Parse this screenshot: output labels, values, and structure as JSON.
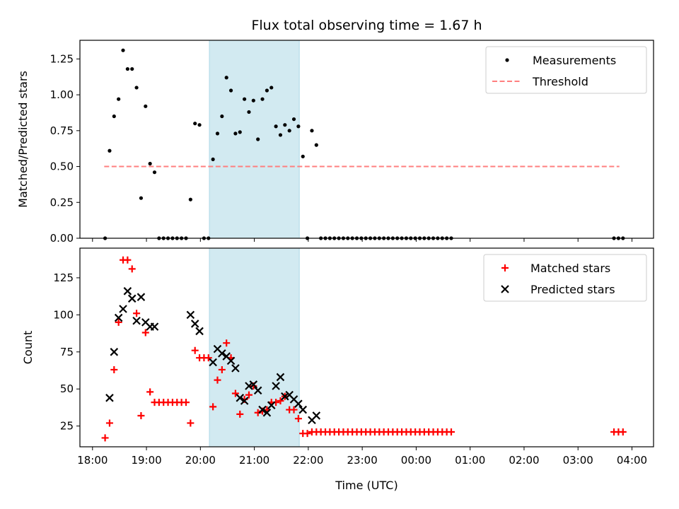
{
  "chart_data": [
    {
      "type": "scatter",
      "title": "Flux total observing time = 1.67 h",
      "xlabel": "",
      "ylabel": "Matched/Predicted stars",
      "ylim": [
        0,
        1.38
      ],
      "xlim": [
        "17:46",
        "04:24"
      ],
      "yticks": [
        "0.00",
        "0.25",
        "0.50",
        "0.75",
        "1.00",
        "1.25"
      ],
      "legend": {
        "position": "upper right",
        "entries": [
          "Measurements",
          "Threshold"
        ]
      },
      "shaded_region": {
        "from": "20:10",
        "to": "21:50",
        "color": "#add8e6"
      },
      "threshold": {
        "name": "Threshold",
        "value": 0.5,
        "from": "18:13",
        "to": "03:46",
        "color": "#ff7f7f"
      },
      "series": [
        {
          "name": "Measurements",
          "color": "#000000",
          "points": [
            [
              "18:14",
              0.0
            ],
            [
              "18:19",
              0.61
            ],
            [
              "18:24",
              0.85
            ],
            [
              "18:29",
              0.97
            ],
            [
              "18:34",
              1.31
            ],
            [
              "18:39",
              1.18
            ],
            [
              "18:44",
              1.18
            ],
            [
              "18:49",
              1.05
            ],
            [
              "18:54",
              0.28
            ],
            [
              "18:59",
              0.92
            ],
            [
              "19:04",
              0.52
            ],
            [
              "19:09",
              0.46
            ],
            [
              "19:14",
              0.0
            ],
            [
              "19:19",
              0.0
            ],
            [
              "19:24",
              0.0
            ],
            [
              "19:29",
              0.0
            ],
            [
              "19:34",
              0.0
            ],
            [
              "19:39",
              0.0
            ],
            [
              "19:44",
              0.0
            ],
            [
              "19:49",
              0.27
            ],
            [
              "19:54",
              0.8
            ],
            [
              "19:59",
              0.79
            ],
            [
              "20:04",
              0.0
            ],
            [
              "20:09",
              0.0
            ],
            [
              "20:14",
              0.55
            ],
            [
              "20:19",
              0.73
            ],
            [
              "20:24",
              0.85
            ],
            [
              "20:29",
              1.12
            ],
            [
              "20:34",
              1.03
            ],
            [
              "20:39",
              0.73
            ],
            [
              "20:44",
              0.74
            ],
            [
              "20:49",
              0.97
            ],
            [
              "20:54",
              0.88
            ],
            [
              "20:59",
              0.96
            ],
            [
              "21:04",
              0.69
            ],
            [
              "21:09",
              0.97
            ],
            [
              "21:14",
              1.03
            ],
            [
              "21:19",
              1.05
            ],
            [
              "21:24",
              0.78
            ],
            [
              "21:29",
              0.72
            ],
            [
              "21:34",
              0.79
            ],
            [
              "21:39",
              0.75
            ],
            [
              "21:44",
              0.83
            ],
            [
              "21:49",
              0.78
            ],
            [
              "21:54",
              0.57
            ],
            [
              "21:59",
              0.0
            ],
            [
              "22:04",
              0.75
            ],
            [
              "22:09",
              0.65
            ],
            [
              "22:14",
              0.0
            ],
            [
              "22:19",
              0.0
            ],
            [
              "22:24",
              0.0
            ],
            [
              "22:29",
              0.0
            ],
            [
              "22:34",
              0.0
            ],
            [
              "22:39",
              0.0
            ],
            [
              "22:44",
              0.0
            ],
            [
              "22:49",
              0.0
            ],
            [
              "22:54",
              0.0
            ],
            [
              "22:59",
              0.0
            ],
            [
              "23:04",
              0.0
            ],
            [
              "23:09",
              0.0
            ],
            [
              "23:14",
              0.0
            ],
            [
              "23:19",
              0.0
            ],
            [
              "23:24",
              0.0
            ],
            [
              "23:29",
              0.0
            ],
            [
              "23:34",
              0.0
            ],
            [
              "23:39",
              0.0
            ],
            [
              "23:44",
              0.0
            ],
            [
              "23:49",
              0.0
            ],
            [
              "23:54",
              0.0
            ],
            [
              "23:59",
              0.0
            ],
            [
              "00:04",
              0.0
            ],
            [
              "00:09",
              0.0
            ],
            [
              "00:14",
              0.0
            ],
            [
              "00:19",
              0.0
            ],
            [
              "00:24",
              0.0
            ],
            [
              "00:29",
              0.0
            ],
            [
              "00:34",
              0.0
            ],
            [
              "00:39",
              0.0
            ],
            [
              "03:40",
              0.0
            ],
            [
              "03:45",
              0.0
            ],
            [
              "03:50",
              0.0
            ]
          ]
        }
      ]
    },
    {
      "type": "scatter",
      "title": "",
      "xlabel": "Time (UTC)",
      "ylabel": "Count",
      "ylim": [
        11,
        145
      ],
      "xlim": [
        "17:46",
        "04:24"
      ],
      "xticks": [
        "18:00",
        "19:00",
        "20:00",
        "21:00",
        "22:00",
        "23:00",
        "00:00",
        "01:00",
        "02:00",
        "03:00",
        "04:00"
      ],
      "yticks": [
        "25",
        "50",
        "75",
        "100",
        "125"
      ],
      "legend": {
        "position": "upper right",
        "entries": [
          "Matched stars",
          "Predicted stars"
        ]
      },
      "shaded_region": {
        "from": "20:10",
        "to": "21:50",
        "color": "#add8e6"
      },
      "series": [
        {
          "name": "Matched stars",
          "marker": "+",
          "color": "#ff0000",
          "points": [
            [
              "18:14",
              17
            ],
            [
              "18:19",
              27
            ],
            [
              "18:24",
              63
            ],
            [
              "18:29",
              95
            ],
            [
              "18:34",
              137
            ],
            [
              "18:39",
              137
            ],
            [
              "18:44",
              131
            ],
            [
              "18:49",
              101
            ],
            [
              "18:54",
              32
            ],
            [
              "18:59",
              88
            ],
            [
              "19:04",
              48
            ],
            [
              "19:09",
              41
            ],
            [
              "19:14",
              41
            ],
            [
              "19:19",
              41
            ],
            [
              "19:24",
              41
            ],
            [
              "19:29",
              41
            ],
            [
              "19:34",
              41
            ],
            [
              "19:39",
              41
            ],
            [
              "19:44",
              41
            ],
            [
              "19:49",
              27
            ],
            [
              "19:54",
              76
            ],
            [
              "19:59",
              71
            ],
            [
              "20:04",
              71
            ],
            [
              "20:09",
              71
            ],
            [
              "20:14",
              38
            ],
            [
              "20:19",
              56
            ],
            [
              "20:24",
              63
            ],
            [
              "20:29",
              81
            ],
            [
              "20:34",
              71
            ],
            [
              "20:39",
              47
            ],
            [
              "20:44",
              33
            ],
            [
              "20:49",
              43
            ],
            [
              "20:54",
              46
            ],
            [
              "20:59",
              52
            ],
            [
              "21:04",
              34
            ],
            [
              "21:09",
              35
            ],
            [
              "21:14",
              36
            ],
            [
              "21:19",
              41
            ],
            [
              "21:24",
              41
            ],
            [
              "21:29",
              42
            ],
            [
              "21:34",
              45
            ],
            [
              "21:39",
              36
            ],
            [
              "21:44",
              36
            ],
            [
              "21:49",
              30
            ],
            [
              "21:54",
              20
            ],
            [
              "21:59",
              20
            ],
            [
              "22:04",
              21
            ],
            [
              "22:09",
              21
            ],
            [
              "22:14",
              21
            ],
            [
              "22:19",
              21
            ],
            [
              "22:24",
              21
            ],
            [
              "22:29",
              21
            ],
            [
              "22:34",
              21
            ],
            [
              "22:39",
              21
            ],
            [
              "22:44",
              21
            ],
            [
              "22:49",
              21
            ],
            [
              "22:54",
              21
            ],
            [
              "22:59",
              21
            ],
            [
              "23:04",
              21
            ],
            [
              "23:09",
              21
            ],
            [
              "23:14",
              21
            ],
            [
              "23:19",
              21
            ],
            [
              "23:24",
              21
            ],
            [
              "23:29",
              21
            ],
            [
              "23:34",
              21
            ],
            [
              "23:39",
              21
            ],
            [
              "23:44",
              21
            ],
            [
              "23:49",
              21
            ],
            [
              "23:54",
              21
            ],
            [
              "23:59",
              21
            ],
            [
              "00:04",
              21
            ],
            [
              "00:09",
              21
            ],
            [
              "00:14",
              21
            ],
            [
              "00:19",
              21
            ],
            [
              "00:24",
              21
            ],
            [
              "00:29",
              21
            ],
            [
              "00:34",
              21
            ],
            [
              "00:39",
              21
            ],
            [
              "03:40",
              21
            ],
            [
              "03:45",
              21
            ],
            [
              "03:50",
              21
            ]
          ]
        },
        {
          "name": "Predicted stars",
          "marker": "x",
          "color": "#000000",
          "points": [
            [
              "18:19",
              44
            ],
            [
              "18:24",
              75
            ],
            [
              "18:29",
              98
            ],
            [
              "18:34",
              104
            ],
            [
              "18:39",
              116
            ],
            [
              "18:44",
              111
            ],
            [
              "18:49",
              96
            ],
            [
              "18:54",
              112
            ],
            [
              "18:59",
              95
            ],
            [
              "19:04",
              92
            ],
            [
              "19:09",
              92
            ],
            [
              "19:49",
              100
            ],
            [
              "19:54",
              94
            ],
            [
              "19:59",
              89
            ],
            [
              "20:14",
              68
            ],
            [
              "20:19",
              77
            ],
            [
              "20:24",
              74
            ],
            [
              "20:29",
              72
            ],
            [
              "20:34",
              69
            ],
            [
              "20:39",
              64
            ],
            [
              "20:44",
              44
            ],
            [
              "20:49",
              42
            ],
            [
              "20:54",
              52
            ],
            [
              "20:59",
              53
            ],
            [
              "21:04",
              49
            ],
            [
              "21:09",
              36
            ],
            [
              "21:14",
              34
            ],
            [
              "21:19",
              39
            ],
            [
              "21:24",
              52
            ],
            [
              "21:29",
              58
            ],
            [
              "21:34",
              45
            ],
            [
              "21:39",
              46
            ],
            [
              "21:44",
              43
            ],
            [
              "21:49",
              40
            ],
            [
              "21:54",
              36
            ],
            [
              "22:04",
              29
            ],
            [
              "22:09",
              32
            ]
          ]
        }
      ]
    }
  ]
}
